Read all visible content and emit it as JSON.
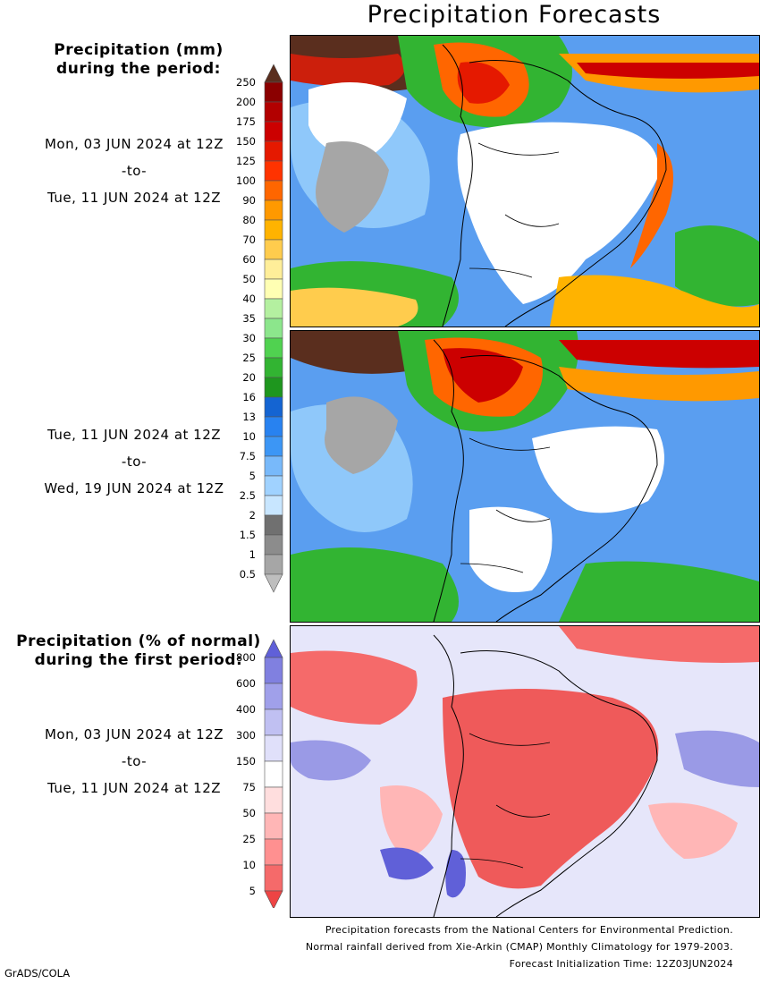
{
  "title": "Precipitation Forecasts",
  "legend_mm": {
    "heading": [
      "Precipitation (mm)",
      "during the period:"
    ],
    "ticks": [
      "250",
      "200",
      "175",
      "150",
      "125",
      "100",
      "90",
      "80",
      "70",
      "60",
      "50",
      "40",
      "35",
      "30",
      "25",
      "20",
      "16",
      "13",
      "10",
      "7.5",
      "5",
      "2.5",
      "2",
      "1.5",
      "1",
      "0.5"
    ],
    "colors": [
      "#5a2e1e",
      "#8b0000",
      "#b20000",
      "#cc0000",
      "#e51900",
      "#ff3300",
      "#ff6600",
      "#ff9900",
      "#ffb300",
      "#ffcc4d",
      "#ffee99",
      "#ffffb3",
      "#b4f0a0",
      "#8ce68c",
      "#50d250",
      "#32b432",
      "#1e961e",
      "#1464d2",
      "#2882f0",
      "#3c96f5",
      "#78b9fa",
      "#a0d2ff",
      "#c8e6ff",
      "#707070",
      "#8c8c8c",
      "#a6a6a6",
      "#bebebe"
    ]
  },
  "period1": {
    "from": "Mon, 03 JUN 2024 at 12Z",
    "sep": "-to-",
    "to": "Tue, 11 JUN 2024 at 12Z"
  },
  "period2": {
    "from": "Tue, 11 JUN 2024 at 12Z",
    "sep": "-to-",
    "to": "Wed, 19 JUN 2024 at 12Z"
  },
  "legend_pct": {
    "heading": [
      "Precipitation (% of normal)",
      "during the first period:"
    ],
    "ticks": [
      "800",
      "600",
      "400",
      "300",
      "150",
      "75",
      "50",
      "25",
      "10",
      "5"
    ],
    "colors": [
      "#6060d8",
      "#8080e0",
      "#a0a0ea",
      "#c0c0f2",
      "#e0e0fa",
      "#ffffff",
      "#ffdede",
      "#ffb6b6",
      "#ff9090",
      "#f56a6a",
      "#ee4444"
    ]
  },
  "period3": {
    "from": "Mon, 03 JUN 2024 at 12Z",
    "sep": "-to-",
    "to": "Tue, 11 JUN 2024 at 12Z"
  },
  "footer": {
    "line1": "Precipitation forecasts from the National Centers for Environmental Prediction.",
    "line2": "Normal rainfall derived from Xie-Arkin (CMAP) Monthly Climatology for 1979-2003.",
    "line3": "Forecast Initialization Time: 12Z03JUN2024"
  },
  "credit": "GrADS/COLA"
}
